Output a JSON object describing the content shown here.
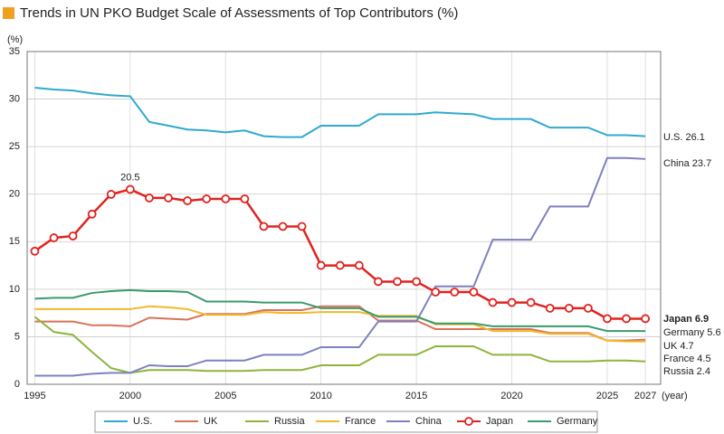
{
  "chart_data": {
    "type": "line",
    "title": "Trends in UN PKO Budget Scale of Assessments of Top Contributors (%)",
    "y_label": "(%)",
    "x_label": "(year)",
    "x": [
      1995,
      1996,
      1997,
      1998,
      1999,
      2000,
      2001,
      2002,
      2003,
      2004,
      2005,
      2006,
      2007,
      2008,
      2009,
      2010,
      2011,
      2012,
      2013,
      2014,
      2015,
      2016,
      2017,
      2018,
      2019,
      2020,
      2021,
      2022,
      2023,
      2024,
      2025,
      2026,
      2027
    ],
    "xlim": [
      1994.6,
      2027.8
    ],
    "xticks": [
      1995,
      2000,
      2005,
      2010,
      2015,
      2020,
      2025,
      2027
    ],
    "ylim": [
      0,
      35
    ],
    "yticks": [
      0,
      5,
      10,
      15,
      20,
      25,
      30,
      35
    ],
    "grid": true,
    "legend": "bottom",
    "series": [
      {
        "name": "U.S.",
        "color": "#2fa9d0",
        "end_label": "U.S. 26.1",
        "values": [
          31.2,
          31.0,
          30.9,
          30.6,
          30.4,
          30.3,
          27.6,
          27.2,
          26.8,
          26.7,
          26.5,
          26.7,
          26.1,
          26.0,
          26.0,
          27.2,
          27.2,
          27.2,
          28.4,
          28.4,
          28.4,
          28.6,
          28.5,
          28.4,
          27.9,
          27.9,
          27.9,
          27.0,
          27.0,
          27.0,
          26.2,
          26.2,
          26.1
        ]
      },
      {
        "name": "UK",
        "color": "#d9725a",
        "end_label": "UK 4.7",
        "values": [
          6.6,
          6.6,
          6.6,
          6.2,
          6.2,
          6.1,
          7.0,
          6.9,
          6.8,
          7.4,
          7.4,
          7.4,
          7.8,
          7.8,
          7.8,
          8.2,
          8.2,
          8.2,
          6.7,
          6.7,
          6.7,
          5.8,
          5.8,
          5.8,
          5.8,
          5.8,
          5.8,
          5.4,
          5.4,
          5.4,
          4.6,
          4.6,
          4.7
        ]
      },
      {
        "name": "Russia",
        "color": "#8db53c",
        "end_label": "Russia 2.4",
        "values": [
          7.1,
          5.5,
          5.2,
          3.4,
          1.7,
          1.2,
          1.5,
          1.5,
          1.5,
          1.4,
          1.4,
          1.4,
          1.5,
          1.5,
          1.5,
          2.0,
          2.0,
          2.0,
          3.1,
          3.1,
          3.1,
          4.0,
          4.0,
          4.0,
          3.1,
          3.1,
          3.1,
          2.4,
          2.4,
          2.4,
          2.5,
          2.5,
          2.4
        ]
      },
      {
        "name": "France",
        "color": "#f0b92a",
        "end_label": "France 4.5",
        "values": [
          7.9,
          7.9,
          7.9,
          7.9,
          7.9,
          7.9,
          8.2,
          8.1,
          7.9,
          7.3,
          7.3,
          7.3,
          7.6,
          7.5,
          7.5,
          7.6,
          7.6,
          7.6,
          7.2,
          7.2,
          7.2,
          6.3,
          6.3,
          6.3,
          5.6,
          5.6,
          5.6,
          5.3,
          5.3,
          5.3,
          4.6,
          4.5,
          4.5
        ]
      },
      {
        "name": "China",
        "color": "#7f80c0",
        "end_label": "China 23.7",
        "values": [
          0.9,
          0.9,
          0.9,
          1.1,
          1.2,
          1.2,
          2.0,
          1.9,
          1.9,
          2.5,
          2.5,
          2.5,
          3.1,
          3.1,
          3.1,
          3.9,
          3.9,
          3.9,
          6.6,
          6.6,
          6.6,
          10.3,
          10.3,
          10.3,
          15.2,
          15.2,
          15.2,
          18.7,
          18.7,
          18.7,
          23.8,
          23.8,
          23.7
        ]
      },
      {
        "name": "Japan",
        "color": "#e0231f",
        "end_label": "Japan 6.9",
        "markers": true,
        "values": [
          14.0,
          15.4,
          15.6,
          17.9,
          19.98,
          20.5,
          19.6,
          19.6,
          19.3,
          19.5,
          19.5,
          19.5,
          16.6,
          16.6,
          16.6,
          12.5,
          12.5,
          12.5,
          10.8,
          10.8,
          10.8,
          9.7,
          9.7,
          9.7,
          8.6,
          8.6,
          8.6,
          8.0,
          8.0,
          8.0,
          6.9,
          6.9,
          6.9
        ]
      },
      {
        "name": "Germany",
        "color": "#3a9b6c",
        "end_label": "Germany 5.6",
        "values": [
          9.0,
          9.1,
          9.1,
          9.6,
          9.8,
          9.9,
          9.8,
          9.8,
          9.7,
          8.7,
          8.7,
          8.7,
          8.6,
          8.6,
          8.6,
          8.0,
          8.0,
          8.0,
          7.1,
          7.1,
          7.1,
          6.4,
          6.4,
          6.4,
          6.1,
          6.1,
          6.1,
          6.1,
          6.1,
          6.1,
          5.6,
          5.6,
          5.6
        ]
      }
    ],
    "annotations": [
      {
        "text": "20.5",
        "x": 2000,
        "y": 20.5
      }
    ]
  }
}
